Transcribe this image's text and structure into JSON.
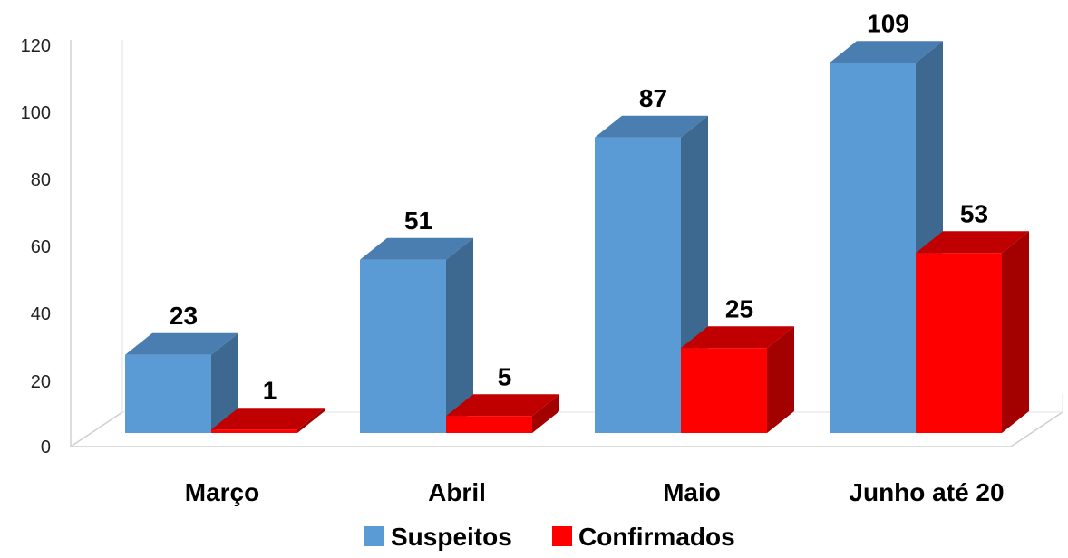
{
  "chart_data": {
    "type": "bar",
    "style": "3d-clustered-column",
    "categories": [
      "Março",
      "Abril",
      "Maio",
      "Junho até 20"
    ],
    "series": [
      {
        "name": "Suspeitos",
        "values": [
          23,
          51,
          87,
          109
        ],
        "color": "#5B9BD5",
        "side_color": "#3D6890",
        "top_color": "#4A7DB0"
      },
      {
        "name": "Confirmados",
        "values": [
          1,
          5,
          25,
          53
        ],
        "color": "#FF0000",
        "side_color": "#A30000",
        "top_color": "#C00000"
      }
    ],
    "y_ticks": [
      0,
      20,
      40,
      60,
      80,
      100,
      120
    ],
    "ylim": [
      0,
      120
    ],
    "legend_position": "bottom",
    "grid": false,
    "title": "",
    "xlabel": "",
    "ylabel": ""
  }
}
